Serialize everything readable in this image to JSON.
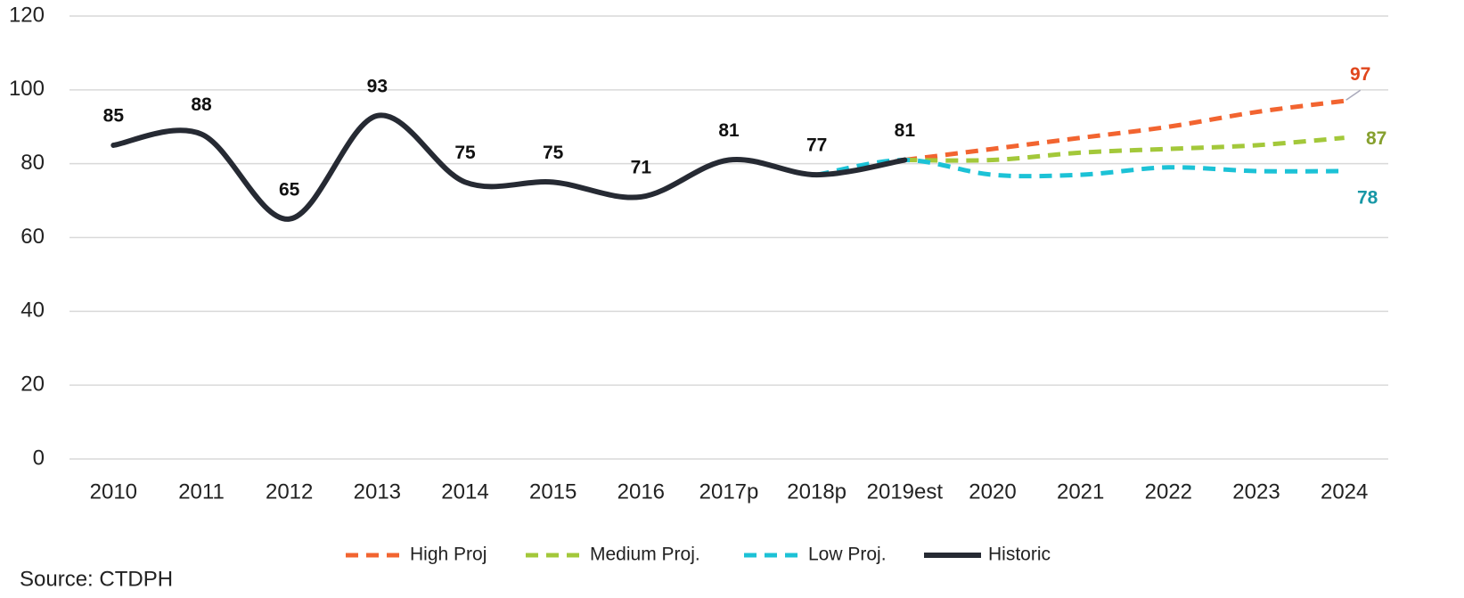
{
  "chart_data": {
    "type": "line",
    "categories": [
      "2010",
      "2011",
      "2012",
      "2013",
      "2014",
      "2015",
      "2016",
      "2017p",
      "2018p",
      "2019est",
      "2020",
      "2021",
      "2022",
      "2023",
      "2024"
    ],
    "series": [
      {
        "name": "High Proj",
        "color": "#f26430",
        "label_color": "#e0461c",
        "dashed": true,
        "label_last_only": true,
        "values": [
          null,
          null,
          null,
          null,
          null,
          null,
          null,
          null,
          null,
          81,
          84,
          87,
          90,
          94,
          97
        ]
      },
      {
        "name": "Medium Proj.",
        "color": "#a3c83a",
        "label_color": "#86a02e",
        "dashed": true,
        "label_last_only": true,
        "values": [
          null,
          null,
          null,
          null,
          null,
          null,
          null,
          null,
          null,
          81,
          81,
          83,
          84,
          85,
          87
        ]
      },
      {
        "name": "Low Proj.",
        "color": "#1cc2d6",
        "label_color": "#1797a6",
        "dashed": true,
        "label_last_only": true,
        "values": [
          null,
          null,
          null,
          null,
          null,
          null,
          null,
          null,
          77,
          81,
          77,
          77,
          79,
          78,
          78
        ]
      },
      {
        "name": "Historic",
        "color": "#262a33",
        "label_color": "#111111",
        "dashed": false,
        "label_last_only": false,
        "values": [
          85,
          88,
          65,
          93,
          75,
          75,
          71,
          81,
          77,
          81,
          null,
          null,
          null,
          null,
          null
        ]
      }
    ],
    "ylim": [
      0,
      120
    ],
    "yticks": [
      0,
      20,
      40,
      60,
      80,
      100,
      120
    ],
    "grid": true,
    "smooth": true,
    "legend": "bottom",
    "source": "Source: CTDPH"
  }
}
